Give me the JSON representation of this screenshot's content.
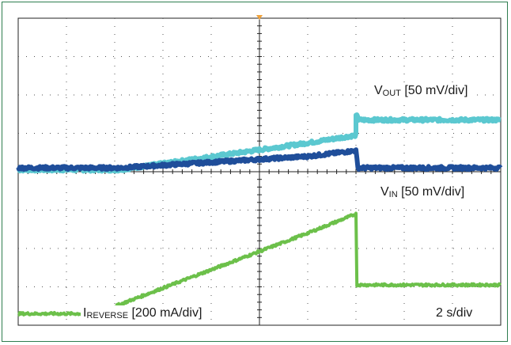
{
  "chart_data": {
    "type": "line",
    "divisions": {
      "x": 10,
      "y": 8
    },
    "trigger_marker_color": "#f0a23c",
    "labels": {
      "vout": {
        "symbol": "V",
        "sub": "OUT",
        "scale": "[50 mV/div]"
      },
      "vin": {
        "symbol": "V",
        "sub": "IN",
        "scale": "[50 mV/div]"
      },
      "ireverse": {
        "symbol": "I",
        "sub": "REVERSE",
        "scale": "[200 mA/div]"
      },
      "timebase": "2 s/div"
    },
    "series": [
      {
        "name": "VOUT",
        "color": "#5bc8d0",
        "x": [
          0,
          2.1,
          6.0,
          7.0,
          7.0,
          7.04,
          7.04,
          7.4,
          10
        ],
        "y": [
          4.05,
          4.05,
          4.75,
          4.95,
          5.45,
          5.45,
          5.35,
          5.35,
          5.35
        ]
      },
      {
        "name": "VIN",
        "color": "#1f4e9a",
        "x": [
          0,
          2.1,
          6.0,
          7.0,
          7.04,
          10
        ],
        "y": [
          4.1,
          4.1,
          4.4,
          4.55,
          4.1,
          4.1
        ]
      },
      {
        "name": "IREVERSE",
        "color": "#6cc04a",
        "x": [
          0,
          1.6,
          6.0,
          7.0,
          7.02,
          10
        ],
        "y": [
          0.3,
          0.3,
          2.4,
          2.9,
          1.05,
          1.05
        ]
      }
    ]
  }
}
